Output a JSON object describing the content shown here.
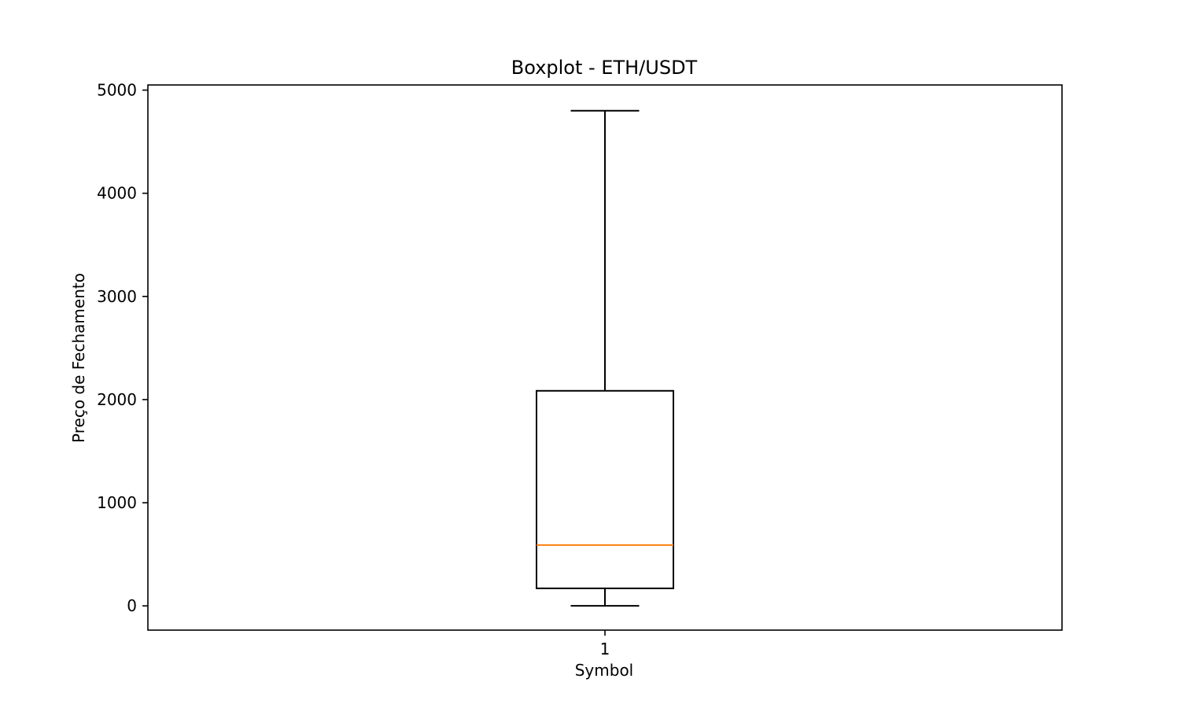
{
  "chart_data": {
    "type": "boxplot",
    "title": "Boxplot - ETH/USDT",
    "xlabel": "Symbol",
    "ylabel": "Preço de Fechamento",
    "categories": [
      "1"
    ],
    "boxes": [
      {
        "category": "1",
        "whisker_low": 0,
        "q1": 170,
        "median": 590,
        "q3": 2085,
        "whisker_high": 4800
      }
    ],
    "ylim": [
      -235,
      5050
    ],
    "yticks": [
      0,
      1000,
      2000,
      3000,
      4000,
      5000
    ],
    "ytick_labels": [
      "0",
      "1000",
      "2000",
      "3000",
      "4000",
      "5000"
    ],
    "grid": false,
    "colors": {
      "box": "#000000",
      "median": "#ff7f0e"
    }
  }
}
